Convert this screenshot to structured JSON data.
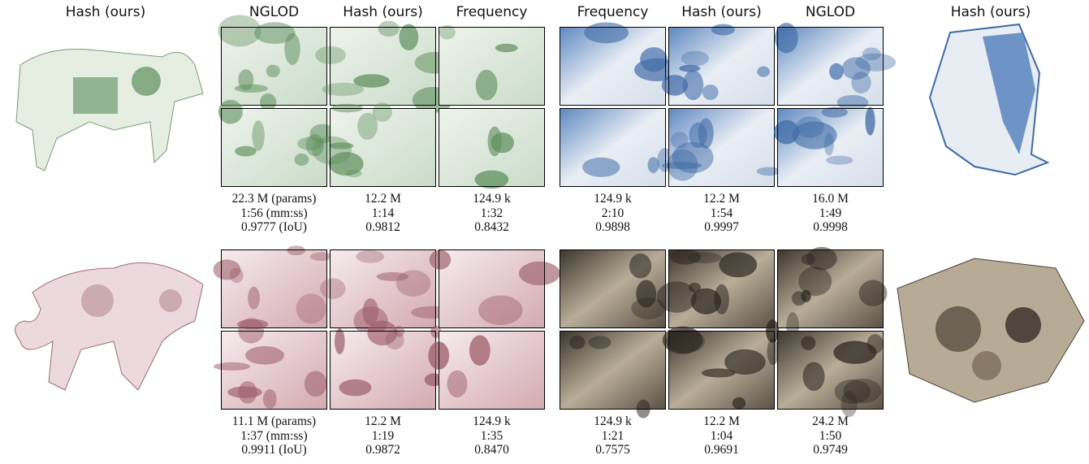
{
  "headers": {
    "left": "Hash (ours)",
    "group1": [
      "NGLOD",
      "Hash (ours)",
      "Frequency"
    ],
    "group2": [
      "Frequency",
      "Hash (ours)",
      "NGLOD"
    ],
    "right": "Hash (ours)"
  },
  "rows": [
    {
      "group1": [
        [
          "22.3 M (params)",
          "1:56 (mm:ss)",
          "0.9777 (IoU)"
        ],
        [
          "12.2 M",
          "1:14",
          "0.9812"
        ],
        [
          "124.9 k",
          "1:32",
          "0.8432"
        ]
      ],
      "group2": [
        [
          "124.9 k",
          "2:10",
          "0.9898"
        ],
        [
          "12.2 M",
          "1:54",
          "0.9997"
        ],
        [
          "16.0 M",
          "1:49",
          "0.9998"
        ]
      ]
    },
    {
      "group1": [
        [
          "11.1 M (params)",
          "1:37 (mm:ss)",
          "0.9911 (IoU)"
        ],
        [
          "12.2 M",
          "1:19",
          "0.9872"
        ],
        [
          "124.9 k",
          "1:35",
          "0.8470"
        ]
      ],
      "group2": [
        [
          "124.9 k",
          "1:21",
          "0.7575"
        ],
        [
          "12.2 M",
          "1:04",
          "0.9691"
        ],
        [
          "24.2 M",
          "1:50",
          "0.9749"
        ]
      ]
    }
  ]
}
